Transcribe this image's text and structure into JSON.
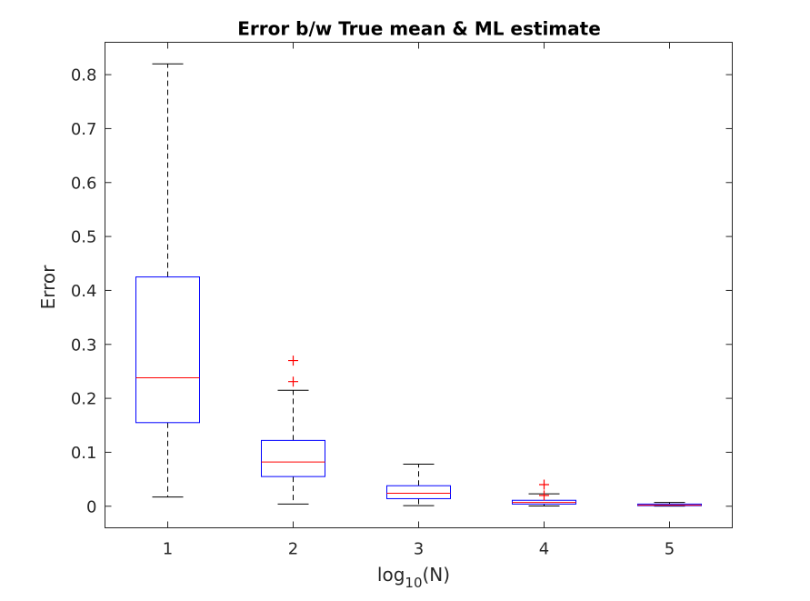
{
  "chart_data": {
    "type": "box",
    "title": "Error b/w True mean & ML estimate",
    "xlabel_base": "log",
    "xlabel_sub": "10",
    "xlabel_tail": "(N)",
    "ylabel": "Error",
    "categories": [
      "1",
      "2",
      "3",
      "4",
      "5"
    ],
    "x": [
      1,
      2,
      3,
      4,
      5
    ],
    "xlim": [
      0.5,
      5.5
    ],
    "ylim": [
      -0.04,
      0.86
    ],
    "yticks": [
      0,
      0.1,
      0.2,
      0.3,
      0.4,
      0.5,
      0.6,
      0.7,
      0.8
    ],
    "ytick_labels": [
      "0",
      "0.1",
      "0.2",
      "0.3",
      "0.4",
      "0.5",
      "0.6",
      "0.7",
      "0.8"
    ],
    "grid": false,
    "legend": "none",
    "colors": {
      "box": "#0000ff",
      "median": "#ff0000",
      "whisker": "#000000",
      "outlier": "#ff0000",
      "axis": "#262626"
    },
    "boxes": [
      {
        "x": 1,
        "whisker_low": 0.017,
        "q1": 0.155,
        "median": 0.238,
        "q3": 0.425,
        "whisker_high": 0.82,
        "outliers": []
      },
      {
        "x": 2,
        "whisker_low": 0.004,
        "q1": 0.055,
        "median": 0.082,
        "q3": 0.122,
        "whisker_high": 0.215,
        "outliers": [
          0.231,
          0.27
        ]
      },
      {
        "x": 3,
        "whisker_low": 0.001,
        "q1": 0.014,
        "median": 0.024,
        "q3": 0.038,
        "whisker_high": 0.078,
        "outliers": []
      },
      {
        "x": 4,
        "whisker_low": 0.0005,
        "q1": 0.004,
        "median": 0.007,
        "q3": 0.011,
        "whisker_high": 0.023,
        "outliers": [
          0.02,
          0.04
        ]
      },
      {
        "x": 5,
        "whisker_low": 0.0002,
        "q1": 0.001,
        "median": 0.002,
        "q3": 0.004,
        "whisker_high": 0.007,
        "outliers": []
      }
    ]
  }
}
